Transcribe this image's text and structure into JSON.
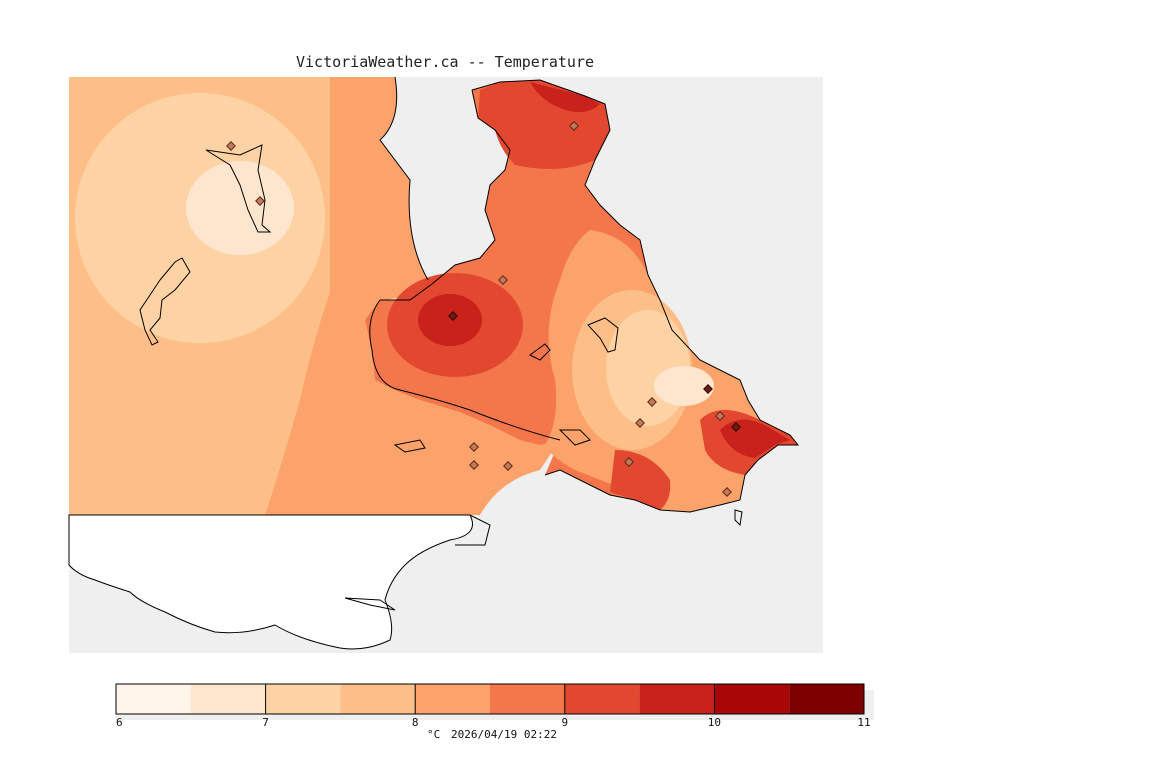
{
  "title": "VictoriaWeather.ca -- Temperature",
  "colors": {
    "background": "#ffffff",
    "sea": "#efefef",
    "land_blank": "#ffffff",
    "coast": "#000000"
  },
  "legend": {
    "unit": "°C",
    "timestamp": "2026/04/19 02:22",
    "ticks": [
      "6",
      "7",
      "8",
      "9",
      "10",
      "11"
    ],
    "bins": [
      {
        "min": 6.0,
        "max": 6.5,
        "color": "#fff5eb"
      },
      {
        "min": 6.5,
        "max": 7.0,
        "color": "#fee6ce"
      },
      {
        "min": 7.0,
        "max": 7.5,
        "color": "#fdd3a5"
      },
      {
        "min": 7.5,
        "max": 8.0,
        "color": "#fdbf87"
      },
      {
        "min": 8.0,
        "max": 8.5,
        "color": "#fca26b"
      },
      {
        "min": 8.5,
        "max": 9.0,
        "color": "#f4774c"
      },
      {
        "min": 9.0,
        "max": 9.5,
        "color": "#e2482f"
      },
      {
        "min": 9.5,
        "max": 10.0,
        "color": "#c9221c"
      },
      {
        "min": 10.0,
        "max": 10.5,
        "color": "#a90707"
      },
      {
        "min": 10.5,
        "max": 11.0,
        "color": "#7e0000"
      }
    ]
  }
}
